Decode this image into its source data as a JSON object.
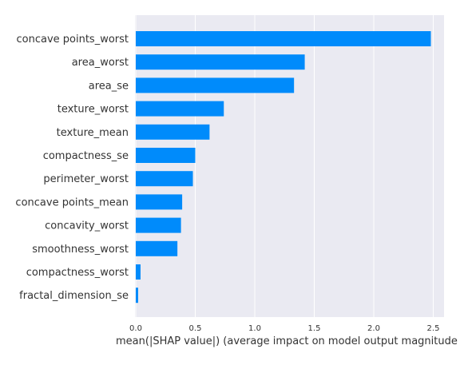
{
  "chart_data": {
    "type": "bar",
    "orientation": "horizontal",
    "categories": [
      "concave points_worst",
      "area_worst",
      "area_se",
      "texture_worst",
      "texture_mean",
      "compactness_se",
      "perimeter_worst",
      "concave points_mean",
      "concavity_worst",
      "smoothness_worst",
      "compactness_worst",
      "fractal_dimension_se"
    ],
    "values": [
      2.48,
      1.42,
      1.33,
      0.74,
      0.62,
      0.5,
      0.48,
      0.39,
      0.38,
      0.35,
      0.04,
      0.02
    ],
    "xlim": [
      0,
      2.6
    ],
    "xticks": [
      0.0,
      0.5,
      1.0,
      1.5,
      2.0,
      2.5
    ],
    "xtick_labels": [
      "0.0",
      "0.5",
      "1.0",
      "1.5",
      "2.0",
      "2.5"
    ],
    "xlabel": "mean(|SHAP value|) (average impact on model output magnitude",
    "ylabel": "",
    "title": "",
    "grid": true,
    "bar_color": "#008bfb",
    "background_color": "#eaeaf2",
    "grid_color": "#ffffff"
  }
}
